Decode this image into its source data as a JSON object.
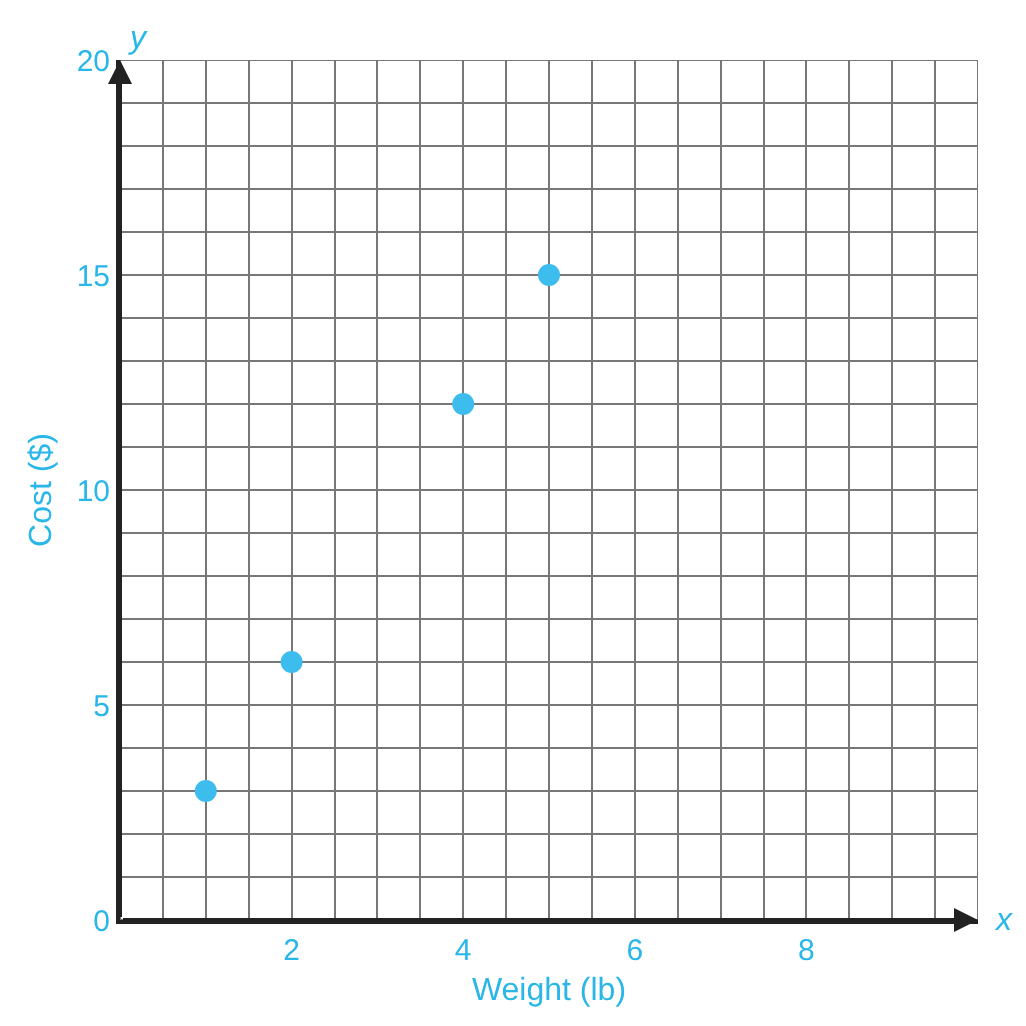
{
  "chart_data": {
    "type": "scatter",
    "xlabel": "Weight (lb)",
    "ylabel": "Cost ($)",
    "x": [
      1,
      2,
      4,
      5
    ],
    "values": [
      3,
      6,
      12,
      15
    ],
    "color": "#3dbdee",
    "marker": "circle",
    "grid": true,
    "xlim": [
      0,
      10
    ],
    "ylim": [
      0,
      20
    ],
    "xticks": [
      {
        "value": 0.5,
        "label": null
      },
      {
        "value": 1,
        "label": null
      },
      {
        "value": 1.5,
        "label": null
      },
      2,
      {
        "value": 2.5,
        "label": null
      },
      {
        "value": 3,
        "label": null
      },
      {
        "value": 3.5,
        "label": null
      },
      4,
      {
        "value": 4.5,
        "label": null
      },
      {
        "value": 5,
        "label": null
      },
      {
        "value": 5.5,
        "label": null
      },
      6,
      {
        "value": 6.5,
        "label": null
      },
      {
        "value": 7,
        "label": null
      },
      {
        "value": 7.5,
        "label": null
      },
      8,
      {
        "value": 8.5,
        "label": null
      },
      {
        "value": 9,
        "label": null
      },
      {
        "value": 9.5,
        "label": null
      },
      {
        "value": 10,
        "label": null
      }
    ],
    "yticks": [
      0,
      {
        "value": 1,
        "label": null
      },
      {
        "value": 2,
        "label": null
      },
      {
        "value": 3,
        "label": null
      },
      {
        "value": 4,
        "label": null
      },
      5,
      {
        "value": 6,
        "label": null
      },
      {
        "value": 7,
        "label": null
      },
      {
        "value": 8,
        "label": null
      },
      {
        "value": 9,
        "label": null
      },
      10,
      {
        "value": 11,
        "label": null
      },
      {
        "value": 12,
        "label": null
      },
      {
        "value": 13,
        "label": null
      },
      {
        "value": 14,
        "label": null
      },
      15,
      {
        "value": 16,
        "label": null
      },
      {
        "value": 17,
        "label": null
      },
      {
        "value": 18,
        "label": null
      },
      {
        "value": 19,
        "label": null
      },
      20
    ],
    "annotations": [
      "x",
      "y"
    ]
  }
}
